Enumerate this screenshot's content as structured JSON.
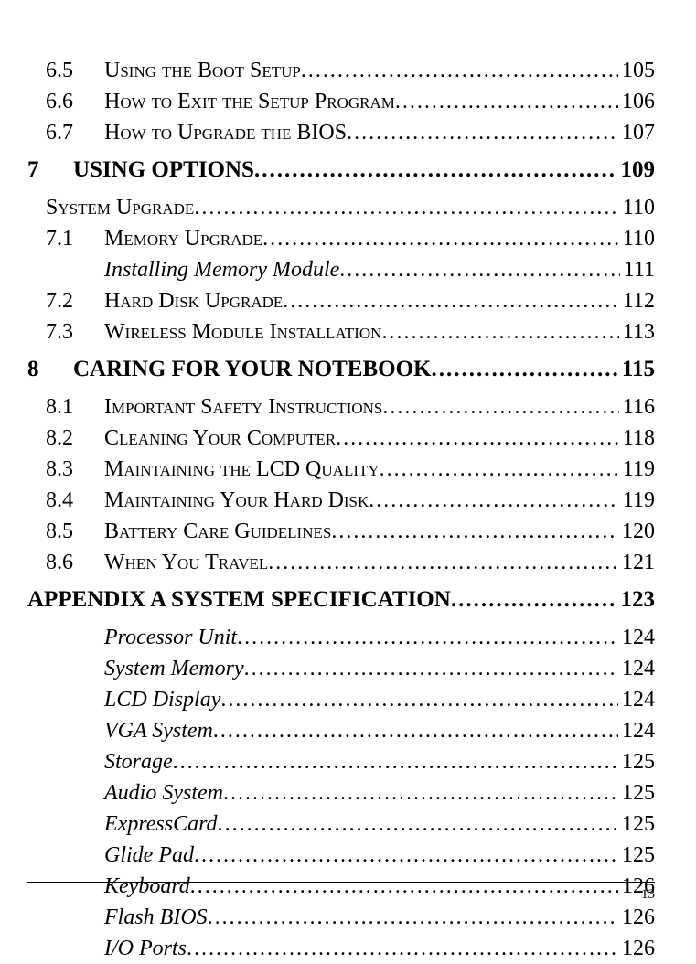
{
  "toc": [
    {
      "type": "section",
      "style": "smallcaps",
      "num": "6.5",
      "title": "Using the Boot Setup",
      "page": "105"
    },
    {
      "type": "section",
      "style": "smallcaps",
      "num": "6.6",
      "title": "How to Exit the Setup Program",
      "page": "106"
    },
    {
      "type": "section",
      "style": "smallcaps",
      "num": "6.7",
      "title": "How to Upgrade the BIOS",
      "page": "107"
    },
    {
      "type": "chapter",
      "num": "7",
      "title": "USING OPTIONS",
      "page": "109"
    },
    {
      "type": "sys",
      "style": "smallcaps",
      "title": "System Upgrade",
      "page": "110"
    },
    {
      "type": "section",
      "style": "smallcaps",
      "num": "7.1",
      "title": "Memory Upgrade",
      "page": "110"
    },
    {
      "type": "sub",
      "style": "italic",
      "title": "Installing Memory Module",
      "page": "111"
    },
    {
      "type": "section",
      "style": "smallcaps",
      "num": "7.2",
      "title": "Hard Disk Upgrade",
      "page": "112"
    },
    {
      "type": "section",
      "style": "smallcaps",
      "num": "7.3",
      "title": "Wireless Module Installation",
      "page": "113"
    },
    {
      "type": "chapter",
      "num": "8",
      "title": "CARING FOR YOUR NOTEBOOK",
      "page": "115"
    },
    {
      "type": "section",
      "style": "smallcaps",
      "num": "8.1",
      "title": "Important Safety Instructions",
      "page": "116"
    },
    {
      "type": "section",
      "style": "smallcaps",
      "num": "8.2",
      "title": "Cleaning Your Computer",
      "page": "118"
    },
    {
      "type": "section",
      "style": "smallcaps",
      "num": "8.3",
      "title": "Maintaining the LCD Quality",
      "page": "119"
    },
    {
      "type": "section",
      "style": "smallcaps",
      "num": "8.4",
      "title": "Maintaining Your Hard Disk",
      "page": "119"
    },
    {
      "type": "section",
      "style": "smallcaps",
      "num": "8.5",
      "title": "Battery Care Guidelines",
      "page": "120"
    },
    {
      "type": "section",
      "style": "smallcaps",
      "num": "8.6",
      "title": "When You Travel",
      "page": "121"
    },
    {
      "type": "chapter",
      "nonumber": true,
      "title": "APPENDIX A  SYSTEM SPECIFICATION",
      "page": "123"
    },
    {
      "type": "sub",
      "style": "italic",
      "title": "Processor Unit",
      "page": "124"
    },
    {
      "type": "sub",
      "style": "italic",
      "title": "System Memory",
      "page": "124"
    },
    {
      "type": "sub",
      "style": "italic",
      "title": "LCD Display",
      "page": "124"
    },
    {
      "type": "sub",
      "style": "italic",
      "title": "VGA System",
      "page": "124"
    },
    {
      "type": "sub",
      "style": "italic",
      "title": "Storage",
      "page": "125"
    },
    {
      "type": "sub",
      "style": "italic",
      "title": "Audio System",
      "page": "125"
    },
    {
      "type": "sub",
      "style": "italic",
      "title": "ExpressCard",
      "page": "125"
    },
    {
      "type": "sub",
      "style": "italic",
      "title": "Glide Pad",
      "page": "125"
    },
    {
      "type": "sub",
      "style": "italic",
      "title": "Keyboard",
      "page": "126"
    },
    {
      "type": "sub",
      "style": "italic",
      "title": "Flash BIOS",
      "page": "126"
    },
    {
      "type": "sub",
      "style": "italic",
      "title": "I/O Ports",
      "page": "126"
    }
  ],
  "footer_page": "13"
}
